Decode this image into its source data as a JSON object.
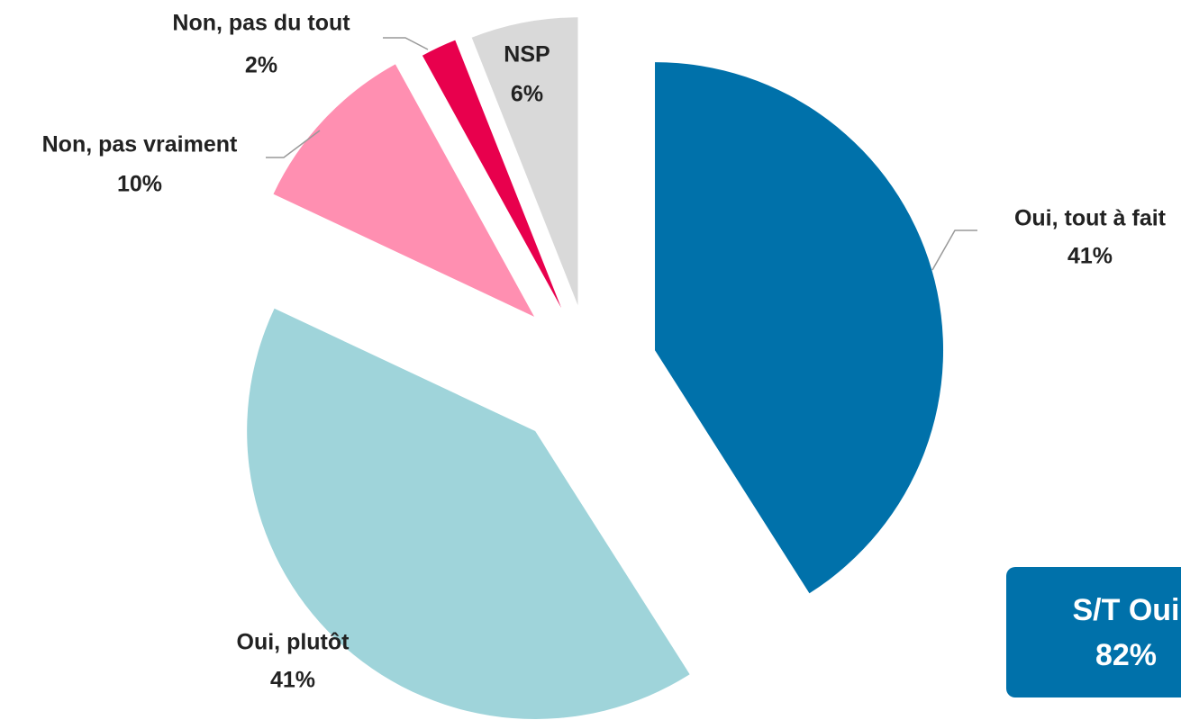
{
  "chart_data": {
    "type": "pie",
    "categories": [
      "Oui, tout à fait",
      "Oui, plutôt",
      "Non, pas vraiment",
      "Non, pas du tout",
      "NSP"
    ],
    "values": [
      41,
      41,
      10,
      2,
      6
    ],
    "value_labels": [
      "41%",
      "41%",
      "10%",
      "2%",
      "6%"
    ],
    "colors": [
      "#0071aa",
      "#9fd4da",
      "#ff8fb1",
      "#e8004d",
      "#d9d9d9"
    ],
    "annotation": {
      "label": "S/T Oui",
      "value": 82,
      "value_label": "82%"
    }
  }
}
